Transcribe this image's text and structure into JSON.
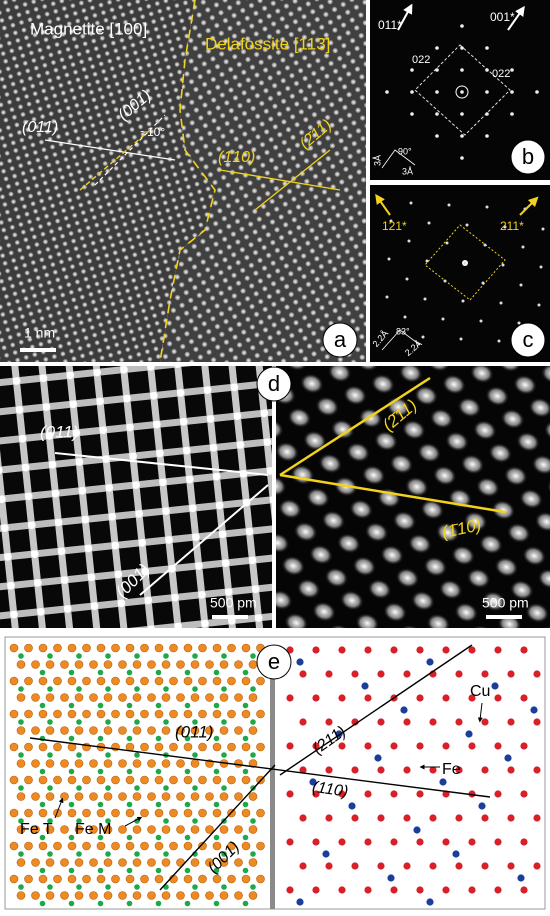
{
  "panels": {
    "a": {
      "label": "a",
      "magnetite": "Magnetite [100]",
      "delafossite": "Delafossite [113̄]",
      "plane_011": "(011)",
      "plane_001": "(001)",
      "angle": "~10°",
      "plane_110": "(1̄10)",
      "plane_211": "(2̄11)",
      "scale": "1 nm"
    },
    "b": {
      "label": "b",
      "dir_011": "011*",
      "dir_001": "001*",
      "spot_left": "022",
      "spot_right": "022",
      "angle": "90°",
      "dist_1": "3Å",
      "dist_2": "3Å"
    },
    "c": {
      "label": "c",
      "dir_121": "121*",
      "dir_211": "211*",
      "angle": "83°",
      "dist_1": "2.2Å",
      "dist_2": "2.2Å"
    },
    "d": {
      "label": "d",
      "plane_011": "(011)",
      "plane_001": "(001)",
      "plane_211": "(2̄11)",
      "plane_110": "(1̄10)",
      "scale_left": "500 pm",
      "scale_right": "500 pm"
    },
    "e": {
      "label": "e",
      "plane_011": "(011)",
      "plane_211": "(211)",
      "plane_110": "(110)",
      "plane_001": "(001)",
      "cu": "Cu",
      "fe": "Fe",
      "fe_t": "Fe T",
      "fe_m": "Fe M"
    }
  }
}
